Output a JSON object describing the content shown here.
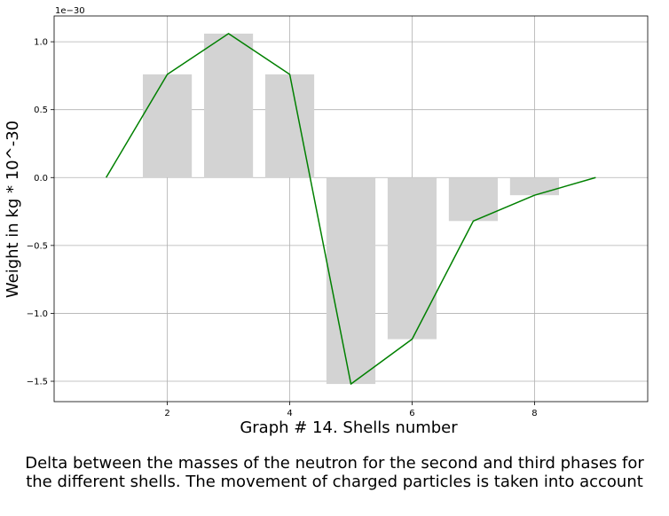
{
  "chart_data": {
    "type": "bar",
    "title": "",
    "xlabel": "Graph # 14. Shells number",
    "ylabel": "Weight in kg * 10^-30",
    "y_offset_label": "1e−30",
    "y_scale_factor": "1e-30",
    "xlim": [
      0.15,
      9.85
    ],
    "ylim": [
      -1.65,
      1.19
    ],
    "xticks": [
      2,
      4,
      6,
      8
    ],
    "yticks": [
      1.0,
      0.5,
      0.0,
      -0.5,
      -1.0,
      -1.5
    ],
    "ytick_labels": [
      "1.0",
      "0.5",
      "0.0",
      "−0.5",
      "−1.0",
      "−1.5"
    ],
    "grid": true,
    "series": [
      {
        "kind": "bar",
        "color": "#d3d3d3",
        "x": [
          2,
          3,
          4,
          5,
          6,
          7,
          8
        ],
        "values": [
          0.76,
          1.06,
          0.76,
          -1.52,
          -1.19,
          -0.32,
          -0.13
        ]
      },
      {
        "kind": "line",
        "color": "#008000",
        "x": [
          1,
          2,
          3,
          4,
          5,
          6,
          7,
          8,
          9
        ],
        "values": [
          0.0,
          0.76,
          1.06,
          0.76,
          -1.52,
          -1.19,
          -0.32,
          -0.13,
          0.0
        ]
      }
    ]
  },
  "caption": {
    "line1": "Delta between the masses of the neutron for the second and third phases for",
    "line2": "the different shells. The movement of charged particles is taken into account"
  }
}
